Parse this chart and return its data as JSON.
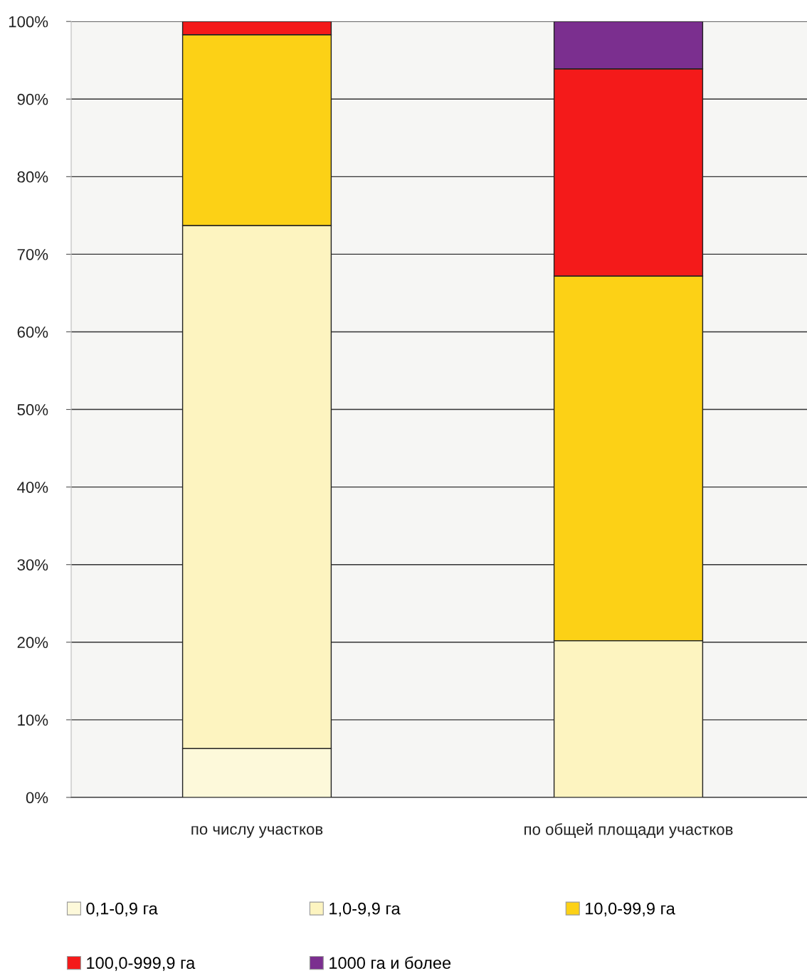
{
  "chart_data": {
    "type": "bar",
    "stacked": true,
    "categories": [
      "по числу участков",
      "по общей площади участков"
    ],
    "series": [
      {
        "name": "0,1-0,9 га",
        "color": "#fdf9da",
        "values": [
          6.3,
          0
        ]
      },
      {
        "name": "1,0-9,9 га",
        "color": "#fdf4c0",
        "values": [
          67.4,
          20.2
        ]
      },
      {
        "name": "10,0-99,9 га",
        "color": "#fcd116",
        "values": [
          24.6,
          47.0
        ]
      },
      {
        "name": "100,0-999,9 га",
        "color": "#f41a1a",
        "values": [
          1.7,
          26.7
        ]
      },
      {
        "name": "1000 га и более",
        "color": "#7b2f8f",
        "values": [
          0,
          6.1
        ]
      }
    ],
    "ylim": [
      0,
      100
    ],
    "yticks": [
      {
        "value": 0,
        "label": "0%"
      },
      {
        "value": 10,
        "label": "10%"
      },
      {
        "value": 20,
        "label": "20%"
      },
      {
        "value": 30,
        "label": "30%"
      },
      {
        "value": 40,
        "label": "40%"
      },
      {
        "value": 50,
        "label": "50%"
      },
      {
        "value": 60,
        "label": "60%"
      },
      {
        "value": 70,
        "label": "70%"
      },
      {
        "value": 80,
        "label": "80%"
      },
      {
        "value": 90,
        "label": "90%"
      },
      {
        "value": 100,
        "label": "100%"
      }
    ],
    "grid": "y",
    "legend": "bottom"
  }
}
